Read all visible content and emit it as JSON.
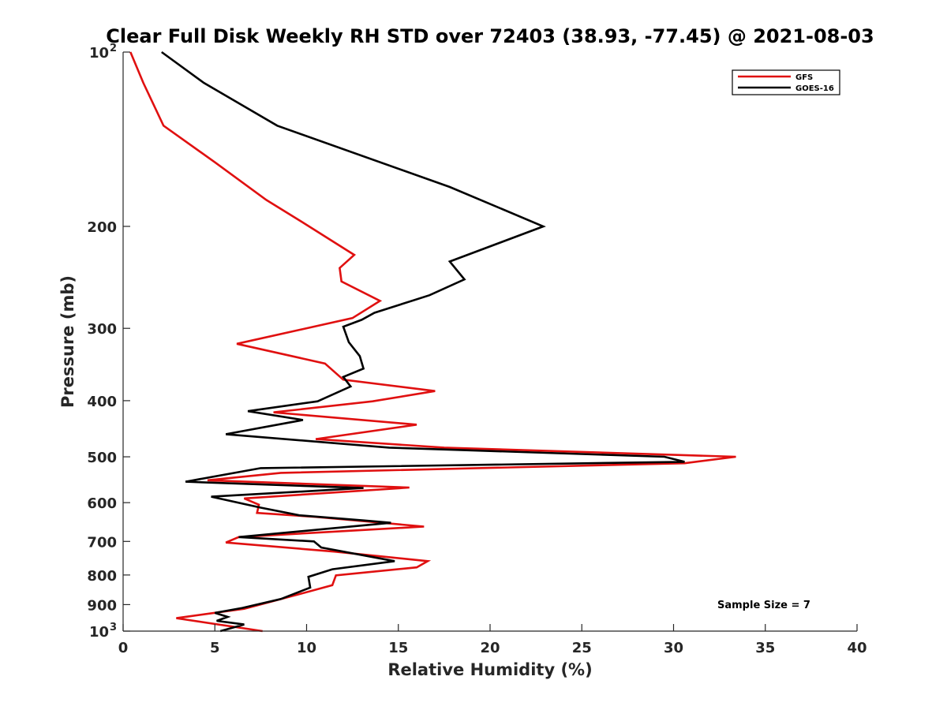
{
  "chart_data": {
    "type": "line",
    "title": "Clear Full Disk Weekly RH STD over 72403 (38.93, -77.45) @ 2021-08-03",
    "xlabel": "Relative Humidity (%)",
    "ylabel": "Pressure (mb)",
    "xlim": [
      0,
      40
    ],
    "ylim": [
      100,
      1000
    ],
    "y_scale": "log",
    "y_reversed": true,
    "x_ticks": [
      "0",
      "5",
      "10",
      "15",
      "20",
      "25",
      "30",
      "35",
      "40"
    ],
    "y_ticks": [
      {
        "value": 100,
        "base": "10",
        "exp": "2"
      },
      {
        "value": 200,
        "label": "200"
      },
      {
        "value": 300,
        "label": "300"
      },
      {
        "value": 400,
        "label": "400"
      },
      {
        "value": 500,
        "label": "500"
      },
      {
        "value": 600,
        "label": "600"
      },
      {
        "value": 700,
        "label": "700"
      },
      {
        "value": 800,
        "label": "800"
      },
      {
        "value": 900,
        "label": "900"
      },
      {
        "value": 1000,
        "base": "10",
        "exp": "3"
      }
    ],
    "legend_position": "top-right",
    "grid": false,
    "annotation": "Sample Size = 7",
    "series": [
      {
        "name": "GFS",
        "color": "#e01010",
        "rh": [
          0.4,
          1.1,
          2.2,
          5.0,
          7.8,
          9.8,
          12.6,
          11.8,
          11.9,
          14.0,
          12.5,
          6.2,
          11.0,
          12.0,
          17.0,
          13.6,
          8.2,
          16.0,
          10.5,
          17.5,
          33.4,
          30.6,
          8.6,
          4.6,
          15.6,
          6.6,
          7.4,
          7.3,
          10.5,
          16.4,
          6.3,
          5.6,
          11.5,
          16.6,
          16.0,
          11.6,
          11.4,
          9.1,
          6.6,
          2.9,
          7.6
        ],
        "pressure": [
          100,
          113,
          134,
          155,
          180,
          197,
          224,
          236,
          249,
          269,
          288,
          319,
          345,
          368,
          385,
          401,
          419,
          440,
          466,
          482,
          500,
          513,
          533,
          549,
          565,
          590,
          605,
          625,
          635,
          660,
          688,
          703,
          729,
          757,
          776,
          801,
          833,
          872,
          915,
          950,
          1000
        ]
      },
      {
        "name": "GOES-16",
        "color": "#000000",
        "rh": [
          2.1,
          4.4,
          8.4,
          17.8,
          22.9,
          17.8,
          18.6,
          16.7,
          13.7,
          13.0,
          12.0,
          12.3,
          12.9,
          13.1,
          12.0,
          12.4,
          10.6,
          6.8,
          9.8,
          5.6,
          14.5,
          29.5,
          30.6,
          7.5,
          3.4,
          13.1,
          4.8,
          7.5,
          9.6,
          13.1,
          14.6,
          6.3,
          10.4,
          10.8,
          14.8,
          11.4,
          10.1,
          10.2,
          8.6,
          6.5,
          5.0,
          5.7,
          5.1,
          6.6,
          5.3
        ],
        "pressure": [
          100,
          113,
          134,
          171,
          200,
          230,
          247,
          263,
          282,
          290,
          298,
          317,
          335,
          352,
          364,
          378,
          401,
          417,
          432,
          457,
          482,
          500,
          510,
          523,
          552,
          566,
          586,
          612,
          631,
          644,
          650,
          688,
          700,
          717,
          757,
          782,
          806,
          841,
          880,
          912,
          930,
          945,
          960,
          974,
          1000
        ]
      }
    ]
  }
}
